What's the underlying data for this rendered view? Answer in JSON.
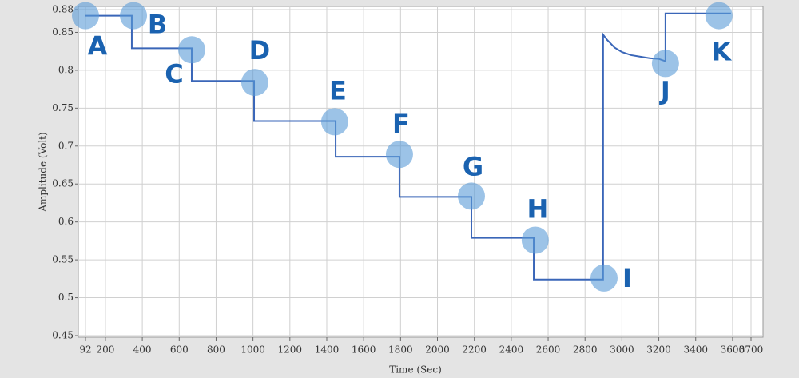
{
  "chart_data": {
    "type": "line",
    "xlabel": "Time (Sec)",
    "ylabel": "Amplitude (Volt)",
    "xlim": [
      92,
      3700
    ],
    "xticks": [
      92,
      200,
      400,
      600,
      800,
      1000,
      1200,
      1400,
      1600,
      1800,
      2000,
      2200,
      2400,
      2600,
      2800,
      3000,
      3200,
      3400,
      3600,
      3700
    ],
    "ylim": [
      0.45,
      0.88
    ],
    "yticks": [
      0.45,
      0.5,
      0.55,
      0.6,
      0.65,
      0.7,
      0.75,
      0.8,
      0.85,
      0.88
    ],
    "grid": true,
    "x": [
      92,
      343,
      343,
      668,
      668,
      1006,
      1006,
      1448,
      1448,
      1794,
      1794,
      2184,
      2184,
      2522,
      2522,
      2898,
      2898,
      2920,
      2960,
      3000,
      3050,
      3100,
      3150,
      3200,
      3236,
      3236,
      3591
    ],
    "series": [
      {
        "color": "#3a66b8",
        "values": [
          0.872,
          0.872,
          0.829,
          0.829,
          0.786,
          0.786,
          0.733,
          0.733,
          0.686,
          0.686,
          0.633,
          0.633,
          0.579,
          0.579,
          0.524,
          0.524,
          0.847,
          0.84,
          0.83,
          0.824,
          0.82,
          0.818,
          0.816,
          0.815,
          0.812,
          0.875,
          0.875
        ]
      }
    ],
    "annotations": [
      {
        "label": "A",
        "x": 92,
        "y": 0.872
      },
      {
        "label": "B",
        "x": 352,
        "y": 0.872
      },
      {
        "label": "C",
        "x": 668,
        "y": 0.827
      },
      {
        "label": "D",
        "x": 1010,
        "y": 0.784
      },
      {
        "label": "E",
        "x": 1443,
        "y": 0.732
      },
      {
        "label": "F",
        "x": 1794,
        "y": 0.689
      },
      {
        "label": "G",
        "x": 2184,
        "y": 0.634
      },
      {
        "label": "H",
        "x": 2530,
        "y": 0.576
      },
      {
        "label": "I",
        "x": 2903,
        "y": 0.526
      },
      {
        "label": "J",
        "x": 3236,
        "y": 0.809
      },
      {
        "label": "K",
        "x": 3526,
        "y": 0.872
      }
    ]
  }
}
